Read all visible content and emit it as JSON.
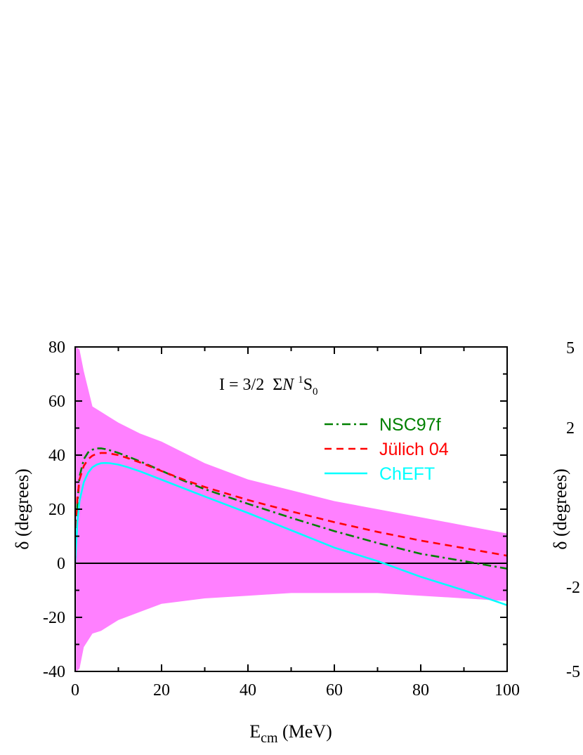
{
  "chart_data": [
    {
      "type": "line",
      "title": "",
      "xlabel": "E",
      "xlabel_sub": "cm",
      "xlabel_unit": " (MeV)",
      "ylabel": "δ (degrees)",
      "xlim": [
        0,
        100
      ],
      "ylim": [
        -40,
        80
      ],
      "x_ticks": [
        "0",
        "20",
        "40",
        "60",
        "80",
        "100"
      ],
      "y_ticks": [
        "80",
        "60",
        "40",
        "20",
        "0",
        "-20",
        "-40"
      ],
      "grid": false,
      "legend_position": "top-right",
      "annotation": {
        "prefix": "I = 3/2  Σ",
        "italic": "N",
        "sup": "1",
        "main": "S",
        "sub": "0"
      },
      "band": {
        "color": "#ff80ff",
        "x": [
          0.2,
          1,
          2,
          4,
          6,
          8,
          10,
          15,
          20,
          25,
          30,
          40,
          50,
          60,
          70,
          80,
          90,
          100
        ],
        "upper": [
          80,
          79,
          71,
          58,
          56,
          54,
          52,
          48,
          45,
          41,
          37,
          31,
          27,
          23,
          20,
          17,
          14,
          11
        ],
        "lower": [
          -40,
          -39,
          -31,
          -26,
          -25,
          -23,
          -21,
          -18,
          -15,
          -14,
          -13,
          -12,
          -11,
          -11,
          -11,
          -12,
          -13,
          -14
        ]
      },
      "series": [
        {
          "name": "NSC97f",
          "color": "#008000",
          "dash": "dashdot",
          "x": [
            0,
            0.5,
            1,
            2,
            3,
            4,
            5,
            6,
            7,
            8,
            10,
            12,
            15,
            20,
            25,
            30,
            40,
            50,
            60,
            70,
            80,
            90,
            100
          ],
          "y": [
            0,
            22,
            32,
            38.5,
            41,
            42,
            42.5,
            42.5,
            42.2,
            41.8,
            40.8,
            39.6,
            37.7,
            34.2,
            30.6,
            27.4,
            22,
            16.8,
            11.9,
            7.5,
            3.5,
            0.8,
            -2
          ]
        },
        {
          "name": "Jülich 04",
          "color": "#ff0000",
          "dash": "dash",
          "x": [
            0,
            0.5,
            1,
            2,
            3,
            4,
            5,
            6,
            7,
            8,
            10,
            12,
            15,
            20,
            25,
            30,
            40,
            50,
            60,
            70,
            80,
            90,
            100
          ],
          "y": [
            0,
            24,
            31,
            36,
            38.5,
            39.8,
            40.5,
            40.8,
            40.8,
            40.6,
            40,
            39,
            37.3,
            34.1,
            31,
            28.2,
            23.4,
            19.2,
            15.2,
            11.6,
            8.4,
            5.6,
            2.8
          ]
        },
        {
          "name": "ChEFT",
          "color": "#00ffff",
          "dash": "solid",
          "x": [
            0,
            0.5,
            1,
            2,
            3,
            4,
            5,
            6,
            7,
            8,
            10,
            12,
            15,
            20,
            25,
            30,
            40,
            50,
            60,
            70,
            80,
            90,
            100
          ],
          "y": [
            0,
            15,
            23,
            30,
            33.5,
            35.5,
            36.5,
            37,
            37.1,
            37,
            36.5,
            35.6,
            34,
            30.9,
            27.8,
            24.7,
            18.6,
            12.2,
            5.8,
            0.8,
            -5,
            -10,
            -15.5
          ]
        }
      ]
    },
    {
      "type": "line",
      "partial": true,
      "ylabel": "δ (degrees)",
      "y_ticks": [
        "5",
        "2",
        "-2",
        "-5"
      ]
    }
  ]
}
